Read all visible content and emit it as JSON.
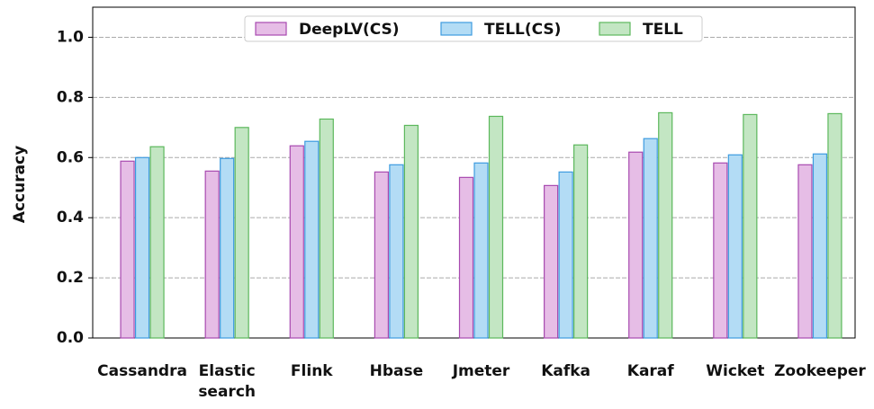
{
  "chart_data": {
    "type": "bar",
    "y_label": "Accuracy",
    "categories": [
      "Cassandra",
      "Elastic\nsearch",
      "Flink",
      "Hbase",
      "Jmeter",
      "Kafka",
      "Karaf",
      "Wicket",
      "Zookeeper"
    ],
    "series": [
      {
        "name": "DeepLV(CS)",
        "color": "#e6bde6",
        "edge": "#a84ab0",
        "values": [
          0.588,
          0.555,
          0.639,
          0.552,
          0.534,
          0.507,
          0.618,
          0.582,
          0.576
        ]
      },
      {
        "name": "TELL(CS)",
        "color": "#b3dcf5",
        "edge": "#3d9be0",
        "values": [
          0.6,
          0.597,
          0.654,
          0.576,
          0.582,
          0.552,
          0.663,
          0.609,
          0.612
        ]
      },
      {
        "name": "TELL",
        "color": "#c3e6c3",
        "edge": "#5cb85c",
        "values": [
          0.636,
          0.7,
          0.728,
          0.707,
          0.737,
          0.642,
          0.749,
          0.743,
          0.746
        ]
      }
    ],
    "ylim": [
      0,
      1.1
    ],
    "yticks": [
      {
        "value": 0,
        "label": "0.0"
      },
      {
        "value": 0.2,
        "label": "0.2"
      },
      {
        "value": 0.4,
        "label": "0.4"
      },
      {
        "value": 0.6,
        "label": "0.6"
      },
      {
        "value": 0.8,
        "label": "0.8"
      },
      {
        "value": 1,
        "label": "1.0"
      }
    ],
    "grid": true,
    "legend": "top"
  }
}
